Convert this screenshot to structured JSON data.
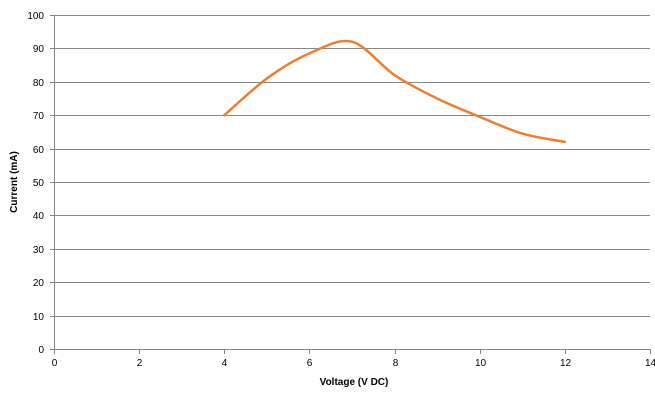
{
  "chart_data": {
    "type": "line",
    "title": "",
    "xlabel": "Voltage (V DC)",
    "ylabel": "Current (mA)",
    "xlim": [
      0,
      14
    ],
    "ylim": [
      0,
      100
    ],
    "x_ticks": [
      "0",
      "2",
      "4",
      "6",
      "8",
      "10",
      "12",
      "14"
    ],
    "y_ticks": [
      "0",
      "10",
      "20",
      "30",
      "40",
      "50",
      "60",
      "70",
      "80",
      "90",
      "100"
    ],
    "grid": "horizontal",
    "legend": "none",
    "smooth": true,
    "series": [
      {
        "color": "#ED7D31",
        "x": [
          4,
          5,
          6,
          7,
          8,
          9,
          10,
          11,
          12
        ],
        "y": [
          70,
          81,
          88.5,
          92,
          82,
          75,
          69.5,
          64.5,
          62
        ]
      }
    ]
  }
}
